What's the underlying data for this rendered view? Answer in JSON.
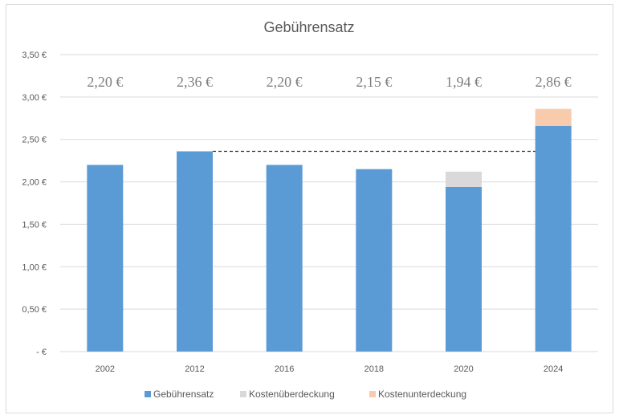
{
  "chart_data": {
    "type": "bar",
    "title": "Gebührensatz",
    "categories": [
      "2002",
      "2012",
      "2016",
      "2018",
      "2020",
      "2024"
    ],
    "series": [
      {
        "name": "Gebührensatz",
        "values": [
          2.2,
          2.36,
          2.2,
          2.15,
          1.94,
          2.66
        ],
        "color": "#5b9bd5"
      },
      {
        "name": "Kostenüberdeckung",
        "values": [
          0,
          0,
          0,
          0,
          0.18,
          0
        ],
        "color": "#d9d9d9"
      },
      {
        "name": "Kostenunterdeckung",
        "values": [
          0,
          0,
          0,
          0,
          0,
          0.2
        ],
        "color": "#f8cbad"
      }
    ],
    "stacked": true,
    "data_labels": [
      "2,20 €",
      "2,36 €",
      "2,20 €",
      "2,15 €",
      "1,94 €",
      "2,86 €"
    ],
    "yticks": [
      {
        "value": 0,
        "label": "-  €"
      },
      {
        "value": 0.5,
        "label": "0,50 €"
      },
      {
        "value": 1.0,
        "label": "1,00 €"
      },
      {
        "value": 1.5,
        "label": "1,50 €"
      },
      {
        "value": 2.0,
        "label": "2,00 €"
      },
      {
        "value": 2.5,
        "label": "2,50 €"
      },
      {
        "value": 3.0,
        "label": "3,00 €"
      },
      {
        "value": 3.5,
        "label": "3,50 €"
      }
    ],
    "ylim": [
      0,
      3.5
    ],
    "reference_line": {
      "value": 2.36,
      "from_category": "2012",
      "to_category": "2024",
      "style": "dashed"
    },
    "grid": true,
    "legend_position": "bottom",
    "xlabel": "",
    "ylabel": ""
  }
}
